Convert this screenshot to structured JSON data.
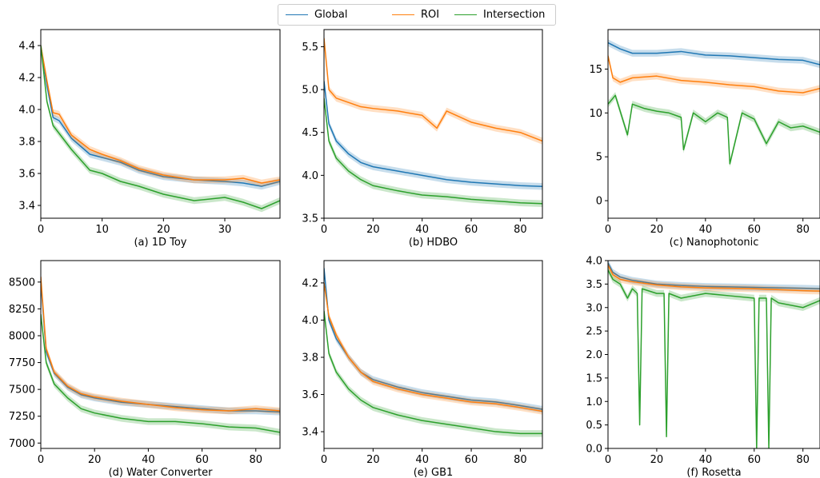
{
  "legend": [
    {
      "name": "Global",
      "color": "#1f77b4"
    },
    {
      "name": "ROI",
      "color": "#ff7f0e"
    },
    {
      "name": "Intersection",
      "color": "#2ca02c"
    }
  ],
  "chart_data": [
    {
      "type": "line",
      "subtitle": "(a) 1D Toy",
      "xlim": [
        0,
        39
      ],
      "ylim": [
        3.32,
        4.5
      ],
      "xticks": [
        0,
        10,
        20,
        30
      ],
      "yticks": [
        3.4,
        3.6,
        3.8,
        4.0,
        4.2,
        4.4
      ],
      "ytick_labels": [
        "3.4",
        "3.6",
        "3.8",
        "4.0",
        "4.2",
        "4.4"
      ],
      "series": [
        {
          "name": "Global",
          "x": [
            0,
            1,
            2,
            3,
            5,
            8,
            10,
            13,
            16,
            20,
            25,
            30,
            33,
            36,
            39
          ],
          "y": [
            4.4,
            4.15,
            3.95,
            3.93,
            3.82,
            3.72,
            3.7,
            3.67,
            3.62,
            3.58,
            3.56,
            3.55,
            3.54,
            3.52,
            3.55
          ]
        },
        {
          "name": "ROI",
          "x": [
            0,
            1,
            2,
            3,
            5,
            8,
            10,
            13,
            16,
            20,
            25,
            30,
            33,
            36,
            39
          ],
          "y": [
            4.4,
            4.18,
            3.98,
            3.97,
            3.84,
            3.75,
            3.72,
            3.68,
            3.63,
            3.59,
            3.56,
            3.56,
            3.57,
            3.54,
            3.56
          ]
        },
        {
          "name": "Intersection",
          "x": [
            0,
            1,
            2,
            3,
            5,
            8,
            10,
            13,
            16,
            20,
            25,
            30,
            33,
            36,
            39
          ],
          "y": [
            4.4,
            4.05,
            3.9,
            3.85,
            3.75,
            3.62,
            3.6,
            3.55,
            3.52,
            3.47,
            3.43,
            3.45,
            3.42,
            3.38,
            3.43
          ]
        }
      ]
    },
    {
      "type": "line",
      "subtitle": "(b) HDBO",
      "xlim": [
        0,
        89
      ],
      "ylim": [
        3.5,
        5.7
      ],
      "xticks": [
        0,
        20,
        40,
        60,
        80
      ],
      "yticks": [
        3.5,
        4.0,
        4.5,
        5.0,
        5.5
      ],
      "ytick_labels": [
        "3.5",
        "4.0",
        "4.5",
        "5.0",
        "5.5"
      ],
      "series": [
        {
          "name": "Global",
          "x": [
            0,
            2,
            5,
            10,
            15,
            20,
            30,
            40,
            50,
            60,
            70,
            80,
            89
          ],
          "y": [
            5.1,
            4.6,
            4.4,
            4.25,
            4.15,
            4.1,
            4.05,
            4.0,
            3.95,
            3.92,
            3.9,
            3.88,
            3.87
          ]
        },
        {
          "name": "ROI",
          "x": [
            0,
            2,
            5,
            10,
            15,
            20,
            30,
            40,
            46,
            50,
            60,
            70,
            80,
            89
          ],
          "y": [
            5.6,
            5.0,
            4.9,
            4.85,
            4.8,
            4.78,
            4.75,
            4.7,
            4.55,
            4.75,
            4.62,
            4.55,
            4.5,
            4.4
          ]
        },
        {
          "name": "Intersection",
          "x": [
            0,
            2,
            5,
            10,
            15,
            20,
            30,
            40,
            50,
            60,
            70,
            80,
            89
          ],
          "y": [
            4.9,
            4.4,
            4.2,
            4.05,
            3.95,
            3.88,
            3.82,
            3.77,
            3.75,
            3.72,
            3.7,
            3.68,
            3.67
          ]
        }
      ]
    },
    {
      "type": "line",
      "subtitle": "(c) Nanophotonic",
      "xlim": [
        0,
        87
      ],
      "ylim": [
        -2,
        19.5
      ],
      "xticks": [
        0,
        20,
        40,
        60,
        80
      ],
      "yticks": [
        0,
        5,
        10,
        15
      ],
      "ytick_labels": [
        "0",
        "5",
        "10",
        "15"
      ],
      "series": [
        {
          "name": "Global",
          "x": [
            0,
            5,
            10,
            20,
            30,
            40,
            50,
            60,
            70,
            80,
            87
          ],
          "y": [
            18.0,
            17.3,
            16.8,
            16.8,
            17.0,
            16.6,
            16.5,
            16.3,
            16.1,
            16.0,
            15.5
          ]
        },
        {
          "name": "ROI",
          "x": [
            0,
            2,
            5,
            10,
            20,
            30,
            40,
            50,
            60,
            70,
            80,
            87
          ],
          "y": [
            16.5,
            14.0,
            13.5,
            14.0,
            14.2,
            13.7,
            13.5,
            13.2,
            13.0,
            12.5,
            12.3,
            12.8
          ]
        },
        {
          "name": "Intersection",
          "x": [
            0,
            3,
            8,
            10,
            15,
            20,
            25,
            30,
            31,
            35,
            40,
            45,
            49,
            50,
            55,
            60,
            65,
            70,
            75,
            80,
            87
          ],
          "y": [
            11.0,
            12.0,
            7.5,
            11.0,
            10.5,
            10.2,
            10.0,
            9.5,
            5.8,
            10.0,
            9.0,
            10.0,
            9.5,
            4.2,
            10.0,
            9.3,
            6.5,
            9.0,
            8.3,
            8.5,
            7.8
          ]
        }
      ]
    },
    {
      "type": "line",
      "subtitle": "(d) Water Converter",
      "xlim": [
        0,
        89
      ],
      "ylim": [
        6950,
        8700
      ],
      "xticks": [
        0,
        20,
        40,
        60,
        80
      ],
      "yticks": [
        7000,
        7250,
        7500,
        7750,
        8000,
        8250,
        8500
      ],
      "ytick_labels": [
        "7000",
        "7250",
        "7500",
        "7750",
        "8000",
        "8250",
        "8500"
      ],
      "series": [
        {
          "name": "Global",
          "x": [
            0,
            2,
            5,
            10,
            15,
            20,
            30,
            40,
            50,
            60,
            70,
            80,
            89
          ],
          "y": [
            8500,
            7850,
            7650,
            7520,
            7450,
            7420,
            7380,
            7360,
            7340,
            7320,
            7300,
            7300,
            7290
          ]
        },
        {
          "name": "ROI",
          "x": [
            0,
            2,
            5,
            10,
            15,
            20,
            30,
            40,
            50,
            60,
            70,
            80,
            89
          ],
          "y": [
            8550,
            7880,
            7660,
            7530,
            7460,
            7430,
            7390,
            7360,
            7330,
            7310,
            7300,
            7320,
            7300
          ]
        },
        {
          "name": "Intersection",
          "x": [
            0,
            2,
            5,
            10,
            15,
            20,
            30,
            40,
            50,
            60,
            70,
            80,
            89
          ],
          "y": [
            8200,
            7750,
            7550,
            7420,
            7320,
            7280,
            7230,
            7200,
            7200,
            7180,
            7150,
            7140,
            7100
          ]
        }
      ]
    },
    {
      "type": "line",
      "subtitle": "(e) GB1",
      "xlim": [
        0,
        89
      ],
      "ylim": [
        3.31,
        4.32
      ],
      "xticks": [
        0,
        20,
        40,
        60,
        80
      ],
      "yticks": [
        3.4,
        3.6,
        3.8,
        4.0,
        4.2
      ],
      "ytick_labels": [
        "3.4",
        "3.6",
        "3.8",
        "4.0",
        "4.2"
      ],
      "series": [
        {
          "name": "Global",
          "x": [
            0,
            2,
            5,
            10,
            15,
            20,
            30,
            40,
            50,
            60,
            70,
            80,
            89
          ],
          "y": [
            4.28,
            4.0,
            3.9,
            3.8,
            3.72,
            3.68,
            3.64,
            3.61,
            3.59,
            3.57,
            3.56,
            3.54,
            3.52
          ]
        },
        {
          "name": "ROI",
          "x": [
            0,
            2,
            5,
            10,
            15,
            20,
            30,
            40,
            50,
            60,
            70,
            80,
            89
          ],
          "y": [
            4.2,
            4.02,
            3.92,
            3.8,
            3.72,
            3.67,
            3.63,
            3.6,
            3.58,
            3.56,
            3.55,
            3.53,
            3.51
          ]
        },
        {
          "name": "Intersection",
          "x": [
            0,
            2,
            5,
            10,
            15,
            20,
            30,
            40,
            50,
            60,
            70,
            80,
            89
          ],
          "y": [
            4.05,
            3.82,
            3.72,
            3.63,
            3.57,
            3.53,
            3.49,
            3.46,
            3.44,
            3.42,
            3.4,
            3.39,
            3.39
          ]
        }
      ]
    },
    {
      "type": "line",
      "subtitle": "(f) Rosetta",
      "xlim": [
        0,
        87
      ],
      "ylim": [
        0.0,
        4.0
      ],
      "xticks": [
        0,
        20,
        40,
        60,
        80
      ],
      "yticks": [
        0.0,
        0.5,
        1.0,
        1.5,
        2.0,
        2.5,
        3.0,
        3.5,
        4.0
      ],
      "ytick_labels": [
        "0.0",
        "0.5",
        "1.0",
        "1.5",
        "2.0",
        "2.5",
        "3.0",
        "3.5",
        "4.0"
      ],
      "series": [
        {
          "name": "Global",
          "x": [
            0,
            2,
            5,
            10,
            20,
            30,
            40,
            50,
            60,
            70,
            80,
            87
          ],
          "y": [
            3.95,
            3.75,
            3.65,
            3.58,
            3.5,
            3.47,
            3.45,
            3.44,
            3.43,
            3.42,
            3.41,
            3.4
          ]
        },
        {
          "name": "ROI",
          "x": [
            0,
            2,
            5,
            10,
            20,
            30,
            40,
            50,
            60,
            70,
            80,
            87
          ],
          "y": [
            3.9,
            3.7,
            3.6,
            3.55,
            3.48,
            3.44,
            3.42,
            3.41,
            3.4,
            3.38,
            3.36,
            3.35
          ]
        },
        {
          "name": "Intersection",
          "x": [
            0,
            2,
            5,
            8,
            10,
            12,
            13,
            14,
            20,
            23,
            24,
            25,
            30,
            40,
            50,
            60,
            61,
            62,
            65,
            66,
            67,
            70,
            80,
            87
          ],
          "y": [
            3.8,
            3.6,
            3.5,
            3.2,
            3.4,
            3.3,
            0.5,
            3.4,
            3.3,
            3.3,
            0.25,
            3.3,
            3.2,
            3.3,
            3.25,
            3.2,
            0.0,
            3.2,
            3.2,
            0.0,
            3.2,
            3.1,
            3.0,
            3.15
          ]
        }
      ]
    }
  ]
}
